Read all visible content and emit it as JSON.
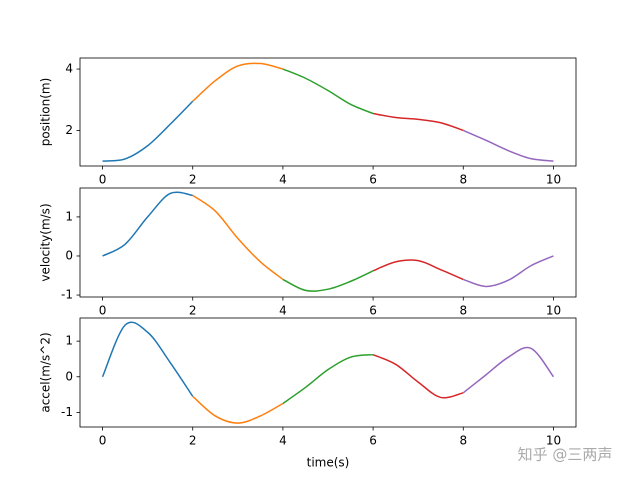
{
  "chart_data": [
    {
      "type": "line",
      "ylabel": "position(m)",
      "xlim": [
        -0.5,
        10.5
      ],
      "ylim": [
        0.84,
        4.36
      ],
      "xticks": [
        0,
        2,
        4,
        6,
        8,
        10
      ],
      "yticks": [
        2,
        4
      ],
      "series": [
        {
          "color": "#1f77b4",
          "x": [
            0,
            0.5,
            1,
            1.5,
            2
          ],
          "values": [
            1.0,
            1.07,
            1.5,
            2.2,
            2.95
          ]
        },
        {
          "color": "#ff7f0e",
          "x": [
            2,
            2.5,
            3,
            3.5,
            4
          ],
          "values": [
            2.95,
            3.62,
            4.1,
            4.18,
            4.0
          ]
        },
        {
          "color": "#2ca02c",
          "x": [
            4,
            4.5,
            5,
            5.5,
            6
          ],
          "values": [
            4.0,
            3.7,
            3.3,
            2.85,
            2.55
          ]
        },
        {
          "color": "#d62728",
          "x": [
            6,
            6.5,
            7,
            7.5,
            8
          ],
          "values": [
            2.55,
            2.42,
            2.36,
            2.25,
            2.0
          ]
        },
        {
          "color": "#9467bd",
          "x": [
            8,
            8.5,
            9,
            9.5,
            10
          ],
          "values": [
            2.0,
            1.68,
            1.34,
            1.08,
            1.0
          ]
        }
      ]
    },
    {
      "type": "line",
      "ylabel": "velocity(m/s)",
      "xlim": [
        -0.5,
        10.5
      ],
      "ylim": [
        -1.05,
        1.74
      ],
      "xticks": [
        0,
        2,
        4,
        6,
        8,
        10
      ],
      "yticks": [
        -1,
        0,
        1
      ],
      "series": [
        {
          "color": "#1f77b4",
          "x": [
            0,
            0.5,
            1,
            1.5,
            2
          ],
          "values": [
            0,
            0.3,
            1.0,
            1.6,
            1.55
          ]
        },
        {
          "color": "#ff7f0e",
          "x": [
            2,
            2.5,
            3,
            3.5,
            4
          ],
          "values": [
            1.55,
            1.15,
            0.45,
            -0.15,
            -0.6
          ]
        },
        {
          "color": "#2ca02c",
          "x": [
            4,
            4.5,
            5,
            5.5,
            6
          ],
          "values": [
            -0.6,
            -0.88,
            -0.85,
            -0.65,
            -0.38
          ]
        },
        {
          "color": "#d62728",
          "x": [
            6,
            6.5,
            7,
            7.5,
            8
          ],
          "values": [
            -0.38,
            -0.15,
            -0.12,
            -0.35,
            -0.6
          ]
        },
        {
          "color": "#9467bd",
          "x": [
            8,
            8.5,
            9,
            9.5,
            10
          ],
          "values": [
            -0.6,
            -0.78,
            -0.62,
            -0.25,
            0
          ]
        }
      ]
    },
    {
      "type": "line",
      "ylabel": "accel(m/s^2)",
      "xlabel": "time(s)",
      "xlim": [
        -0.5,
        10.5
      ],
      "ylim": [
        -1.41,
        1.65
      ],
      "xticks": [
        0,
        2,
        4,
        6,
        8,
        10
      ],
      "yticks": [
        -1,
        0,
        1
      ],
      "series": [
        {
          "color": "#1f77b4",
          "x": [
            0,
            0.5,
            1,
            1.5,
            2
          ],
          "values": [
            0,
            1.45,
            1.25,
            0.4,
            -0.55
          ]
        },
        {
          "color": "#ff7f0e",
          "x": [
            2,
            2.5,
            3,
            3.5,
            4
          ],
          "values": [
            -0.55,
            -1.1,
            -1.3,
            -1.1,
            -0.75
          ]
        },
        {
          "color": "#2ca02c",
          "x": [
            4,
            4.5,
            5,
            5.5,
            6
          ],
          "values": [
            -0.75,
            -0.3,
            0.2,
            0.55,
            0.62
          ]
        },
        {
          "color": "#d62728",
          "x": [
            6,
            6.5,
            7,
            7.5,
            8
          ],
          "values": [
            0.62,
            0.35,
            -0.15,
            -0.58,
            -0.45
          ]
        },
        {
          "color": "#9467bd",
          "x": [
            8,
            8.5,
            9,
            9.5,
            10
          ],
          "values": [
            -0.45,
            0.05,
            0.55,
            0.8,
            0
          ]
        }
      ]
    }
  ],
  "watermark": "知乎 @三两声"
}
